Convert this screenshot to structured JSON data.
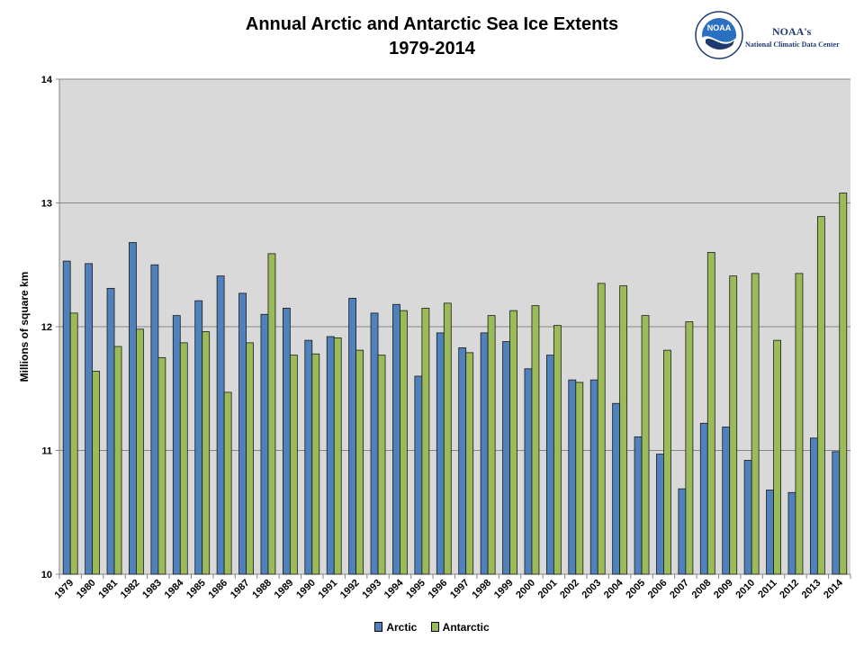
{
  "chart_data": {
    "type": "bar",
    "title": "Annual Arctic and Antarctic Sea Ice Extents",
    "subtitle": "1979-2014",
    "xlabel": "",
    "ylabel": "Millions of square km",
    "ylim": [
      10,
      14
    ],
    "yticks": [
      "10",
      "11",
      "12",
      "13",
      "14"
    ],
    "grid": true,
    "legend_position": "bottom",
    "categories": [
      "1979",
      "1980",
      "1981",
      "1982",
      "1983",
      "1984",
      "1985",
      "1986",
      "1987",
      "1988",
      "1989",
      "1990",
      "1991",
      "1992",
      "1993",
      "1994",
      "1995",
      "1996",
      "1997",
      "1998",
      "1999",
      "2000",
      "2001",
      "2002",
      "2003",
      "2004",
      "2005",
      "2006",
      "2007",
      "2008",
      "2009",
      "2010",
      "2011",
      "2012",
      "2013",
      "2014"
    ],
    "series": [
      {
        "name": "Arctic",
        "color": "#4f81bd",
        "values": [
          12.53,
          12.51,
          12.31,
          12.68,
          12.5,
          12.09,
          12.21,
          12.41,
          12.27,
          12.1,
          12.15,
          11.89,
          11.92,
          12.23,
          12.11,
          12.18,
          11.6,
          11.95,
          11.83,
          11.95,
          11.88,
          11.66,
          11.77,
          11.57,
          11.57,
          11.38,
          11.11,
          10.97,
          10.69,
          11.22,
          11.19,
          10.92,
          10.68,
          10.66,
          11.1,
          10.99
        ]
      },
      {
        "name": "Antarctic",
        "color": "#9bbb59",
        "values": [
          12.11,
          11.64,
          11.84,
          11.98,
          11.75,
          11.87,
          11.96,
          11.47,
          11.87,
          12.59,
          11.77,
          11.78,
          11.91,
          11.81,
          11.77,
          12.13,
          12.15,
          12.19,
          11.79,
          12.09,
          12.13,
          12.17,
          12.01,
          11.55,
          12.35,
          12.33,
          12.09,
          11.81,
          12.04,
          12.6,
          12.41,
          12.43,
          11.89,
          12.43,
          12.89,
          13.08
        ]
      }
    ]
  },
  "logo": {
    "emblem_text": "NOAA",
    "name": "NOAA's",
    "subtitle": "National Climatic Data Center"
  }
}
